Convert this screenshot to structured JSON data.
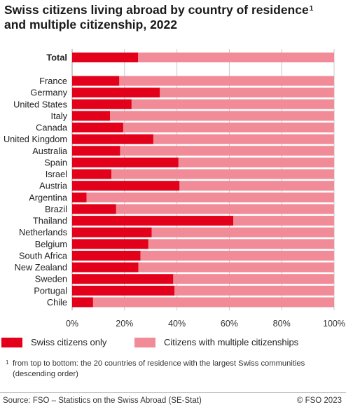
{
  "title": "Swiss citizens living abroad by country of residence",
  "title_sup": "1",
  "title_line2": "and multiple citizenship, 2022",
  "legend": {
    "series1": "Swiss citizens only",
    "series2": "Citizens with multiple citizenships"
  },
  "footnote": {
    "number": "1",
    "text": "from top to bottom: the 20 countries of residence with the largest Swiss communities (descending order)"
  },
  "source": "Source: FSO – Statistics on the Swiss Abroad (SE-Stat)",
  "copyright": "© FSO 2023",
  "colors": {
    "swiss_only": "#e3001b",
    "multiple": "#f08b97",
    "grid": "#c8c8c8",
    "axis": "#9a9a9a"
  },
  "chart_data": {
    "type": "bar",
    "orientation": "horizontal",
    "stacked": "percent",
    "total_label": "Total",
    "categories": [
      "France",
      "Germany",
      "United States",
      "Italy",
      "Canada",
      "United Kingdom",
      "Australia",
      "Spain",
      "Israel",
      "Austria",
      "Argentina",
      "Brazil",
      "Thailand",
      "Netherlands",
      "Belgium",
      "South Africa",
      "New Zealand",
      "Sweden",
      "Portugal",
      "Chile"
    ],
    "total": {
      "swiss_only": 25.2,
      "multiple": 74.8
    },
    "series": [
      {
        "name": "Swiss citizens only",
        "values": [
          18.0,
          33.5,
          22.7,
          14.5,
          19.5,
          31.0,
          18.3,
          40.6,
          15.0,
          41.0,
          5.5,
          16.8,
          61.5,
          30.4,
          29.1,
          26.1,
          25.3,
          38.6,
          39.1,
          8.0
        ]
      },
      {
        "name": "Citizens with multiple citizenships",
        "values": [
          82.0,
          66.5,
          77.3,
          85.5,
          80.5,
          69.0,
          81.7,
          59.4,
          85.0,
          59.0,
          94.5,
          83.2,
          38.5,
          69.6,
          70.9,
          73.9,
          74.7,
          61.4,
          60.9,
          92.0
        ]
      }
    ],
    "xlim": [
      0,
      100
    ],
    "xticks": [
      "0%",
      "20%",
      "40%",
      "60%",
      "80%",
      "100%"
    ],
    "grid": true,
    "legend_position": "bottom"
  }
}
